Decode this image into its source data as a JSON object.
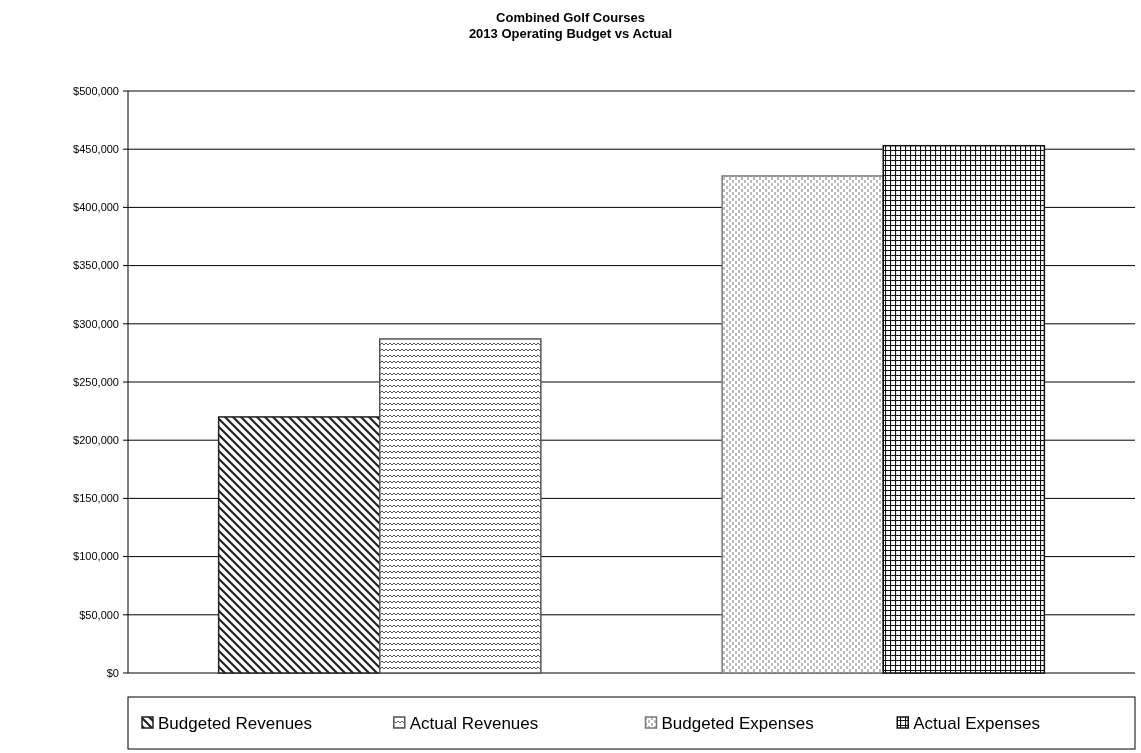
{
  "chart_data": {
    "type": "bar",
    "title": "Combined Golf Courses\n2013 Operating Budget vs Actual",
    "categories": [
      null,
      null
    ],
    "series": [
      {
        "name": "Budgeted Revenues",
        "color": "#222222",
        "values": [
          220000,
          null
        ]
      },
      {
        "name": "Actual Revenues",
        "color": "#555555",
        "values": [
          287000,
          null
        ]
      },
      {
        "name": "Budgeted Expenses",
        "color": "#777777",
        "values": [
          null,
          427000
        ]
      },
      {
        "name": "Actual Expenses",
        "color": "#111111",
        "values": [
          null,
          453000
        ]
      }
    ],
    "ylim": [
      0,
      500000
    ],
    "yticks": [
      {
        "value": 0,
        "label": "$0"
      },
      {
        "value": 50000,
        "label": "$50,000"
      },
      {
        "value": 100000,
        "label": "$100,000"
      },
      {
        "value": 150000,
        "label": "$150,000"
      },
      {
        "value": 200000,
        "label": "$200,000"
      },
      {
        "value": 250000,
        "label": "$250,000"
      },
      {
        "value": 300000,
        "label": "$300,000"
      },
      {
        "value": 350000,
        "label": "$350,000"
      },
      {
        "value": 400000,
        "label": "$400,000"
      },
      {
        "value": 450000,
        "label": "$450,000"
      },
      {
        "value": 500000,
        "label": "$500,000"
      }
    ],
    "grid": "y",
    "legend": "bottom"
  }
}
